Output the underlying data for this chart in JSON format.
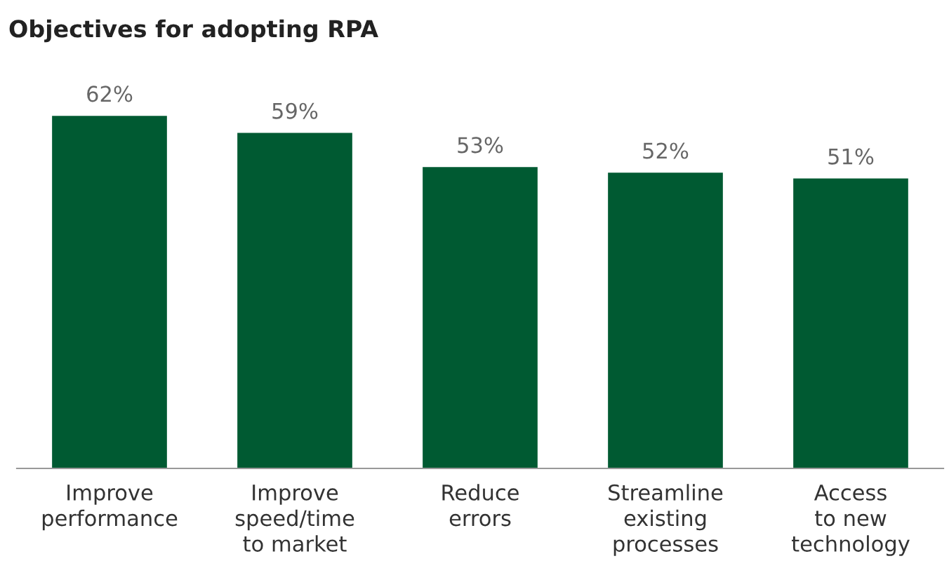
{
  "chart_data": {
    "type": "bar",
    "title": "Objectives for adopting RPA",
    "categories": [
      "Improve\nperformance",
      "Improve\nspeed/time\nto market",
      "Reduce\nerrors",
      "Streamline\nexisting\nprocesses",
      "Access\nto new\ntechnology"
    ],
    "values": [
      62,
      59,
      53,
      52,
      51
    ],
    "value_labels": [
      "62%",
      "59%",
      "53%",
      "52%",
      "51%"
    ],
    "color": "#005a32",
    "grid": false,
    "legend": false
  }
}
